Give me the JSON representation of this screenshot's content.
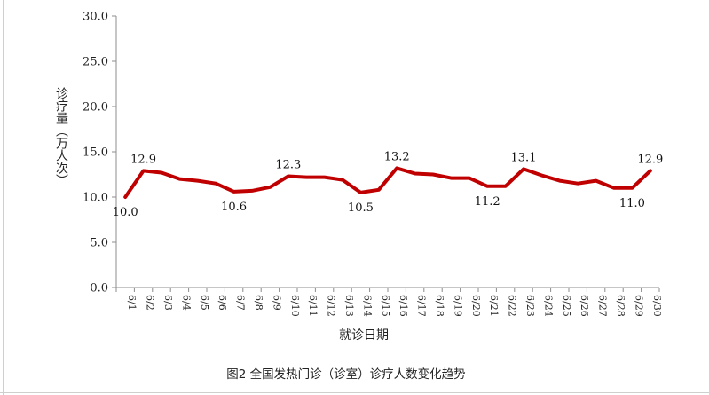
{
  "chart_data": {
    "type": "line",
    "ylabel": "诊疗量（万人次）",
    "xlabel": "就诊日期",
    "caption": "图2  全国发热门诊（诊室）诊疗人数变化趋势",
    "ylim": [
      0,
      30
    ],
    "yticks": [
      "0.0",
      "5.0",
      "10.0",
      "15.0",
      "20.0",
      "25.0",
      "30.0"
    ],
    "categories": [
      "6/1",
      "6/2",
      "6/3",
      "6/4",
      "6/5",
      "6/6",
      "6/7",
      "6/8",
      "6/9",
      "6/10",
      "6/11",
      "6/12",
      "6/13",
      "6/14",
      "6/15",
      "6/16",
      "6/17",
      "6/18",
      "6/19",
      "6/20",
      "6/21",
      "6/22",
      "6/23",
      "6/24",
      "6/25",
      "6/26",
      "6/27",
      "6/28",
      "6/29",
      "6/30"
    ],
    "values": [
      10.0,
      12.9,
      12.7,
      12.0,
      11.8,
      11.5,
      10.6,
      10.7,
      11.1,
      12.3,
      12.2,
      12.2,
      11.9,
      10.5,
      10.8,
      13.2,
      12.6,
      12.5,
      12.1,
      12.1,
      11.2,
      11.2,
      13.1,
      12.4,
      11.8,
      11.5,
      11.8,
      11.0,
      11.0,
      12.9
    ],
    "data_labels": [
      {
        "index": 0,
        "text": "10.0"
      },
      {
        "index": 1,
        "text": "12.9"
      },
      {
        "index": 6,
        "text": "10.6"
      },
      {
        "index": 9,
        "text": "12.3"
      },
      {
        "index": 13,
        "text": "10.5"
      },
      {
        "index": 15,
        "text": "13.2"
      },
      {
        "index": 20,
        "text": "11.2"
      },
      {
        "index": 22,
        "text": "13.1"
      },
      {
        "index": 28,
        "text": "11.0"
      },
      {
        "index": 29,
        "text": "12.9"
      }
    ],
    "line_color": "#c00000",
    "grid": false
  }
}
